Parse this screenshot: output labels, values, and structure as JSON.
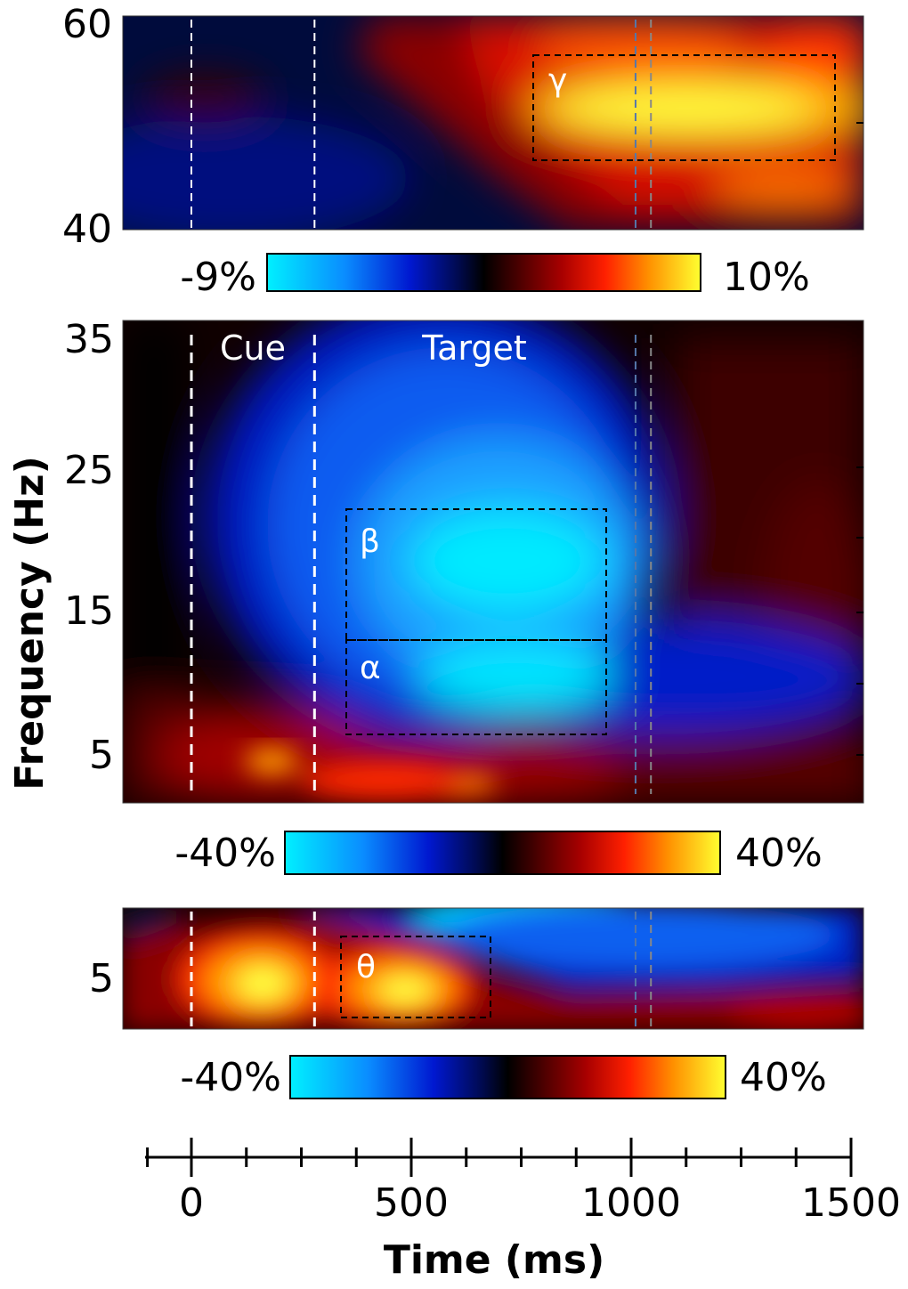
{
  "chart_data": {
    "type": "heatmap",
    "description_title": "",
    "xaxis": {
      "label": "Time (ms)",
      "range": [
        -110,
        1500
      ],
      "major_ticks": [
        0,
        500,
        1000,
        1500
      ],
      "major_tick_labels": [
        "0",
        "500",
        "1000",
        "1500"
      ],
      "minor_ticks": [
        -100,
        125,
        250,
        375,
        625,
        750,
        875,
        1125,
        1250,
        1375
      ]
    },
    "ylabel": "Frequency (Hz)",
    "events": [
      {
        "name": "cue",
        "label": "Cue",
        "time": 0
      },
      {
        "name": "target",
        "label": "Target",
        "time": 280
      }
    ],
    "response_markers": [
      1010,
      1045
    ],
    "panels": [
      {
        "id": "gamma",
        "yrange": [
          40,
          60
        ],
        "ytick_labels": [
          "60",
          "40"
        ],
        "yticks": [
          60,
          40
        ],
        "colorbar": {
          "min_label": "-9%",
          "max_label": "10%",
          "min": -9,
          "max": 10
        },
        "roi": {
          "label": "γ",
          "t_start": 780,
          "t_end": 1470,
          "f_low": 46,
          "f_high": 56
        }
      },
      {
        "id": "alpha-beta",
        "yrange": [
          2,
          36
        ],
        "ytick_labels": [
          "35",
          "25",
          "15",
          "5"
        ],
        "yticks": [
          35,
          25,
          15,
          5
        ],
        "colorbar": {
          "min_label": "-40%",
          "max_label": "40%",
          "min": -40,
          "max": 40
        },
        "rois": [
          {
            "label": "β",
            "t_start": 350,
            "t_end": 950,
            "f_low": 13,
            "f_high": 22
          },
          {
            "label": "α",
            "t_start": 350,
            "t_end": 950,
            "f_low": 6.5,
            "f_high": 13
          }
        ]
      },
      {
        "id": "theta",
        "yrange": [
          2.5,
          8.5
        ],
        "ytick_labels": [
          "5"
        ],
        "yticks": [
          5
        ],
        "colorbar": {
          "min_label": "-40%",
          "max_label": "40%",
          "min": -40,
          "max": 40
        },
        "roi": {
          "label": "θ",
          "t_start": 340,
          "t_end": 690,
          "f_low": 3.5,
          "f_high": 7.5
        }
      }
    ]
  }
}
